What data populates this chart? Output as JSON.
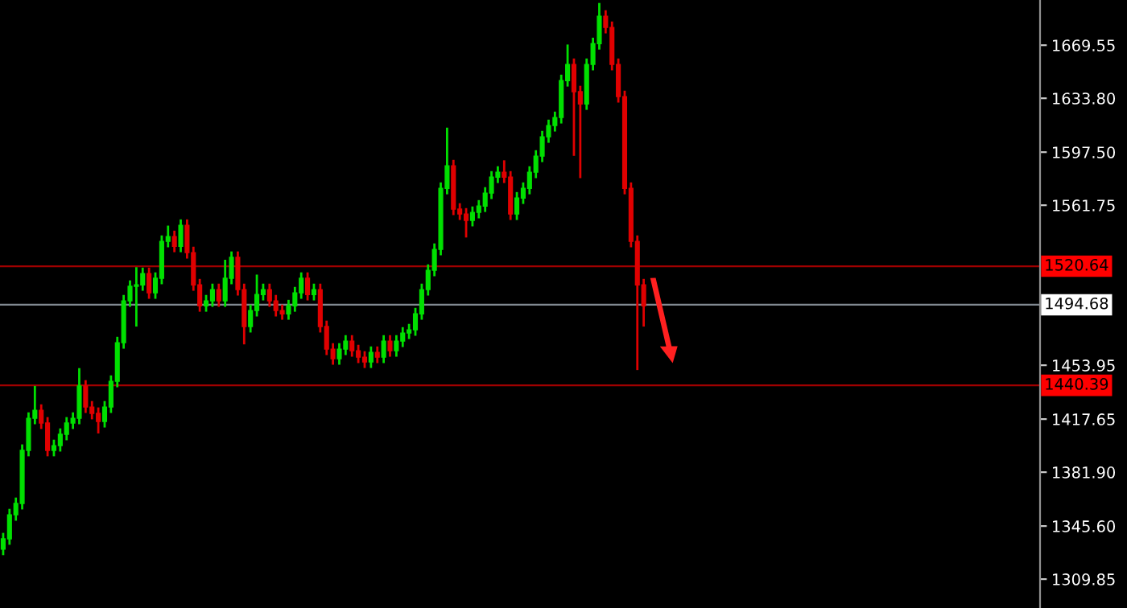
{
  "chart_data": {
    "type": "candlestick",
    "categories": [
      null,
      null,
      null,
      null,
      null,
      null,
      null,
      null,
      null,
      null,
      null,
      null,
      null,
      null,
      null,
      null,
      null,
      null,
      null,
      null,
      null,
      null,
      null,
      null,
      null,
      null,
      null,
      null,
      null,
      null,
      null,
      null,
      null,
      null,
      null,
      null,
      null,
      null,
      null,
      null,
      null,
      null,
      null,
      null,
      null,
      null,
      null,
      null,
      null,
      null,
      null,
      null,
      null,
      null,
      null,
      null,
      null,
      null,
      null,
      null,
      null,
      null,
      null,
      null,
      null,
      null,
      null,
      null,
      null,
      null,
      null,
      null,
      null,
      null,
      null,
      null,
      null,
      null,
      null,
      null,
      null,
      null,
      null,
      null,
      null,
      null,
      null,
      null,
      null,
      null,
      null,
      null,
      null,
      null,
      null,
      null,
      null,
      null,
      null,
      null,
      null,
      null,
      null,
      null,
      null,
      null,
      null,
      null,
      null,
      null,
      null,
      null,
      null,
      null,
      null,
      null,
      null,
      null,
      null,
      null,
      null,
      null,
      null,
      null,
      null,
      null,
      null,
      null,
      null,
      null,
      null,
      null,
      null,
      null,
      null,
      null,
      null,
      null,
      null,
      null,
      null,
      null,
      null,
      null,
      null,
      null,
      null,
      null,
      null,
      null,
      null,
      null,
      null,
      null,
      null,
      null,
      null,
      null,
      null,
      null,
      null,
      null,
      null,
      null
    ],
    "ohlc": [
      [
        1330.0,
        1341.0,
        1326.0,
        1337.0
      ],
      [
        1337.0,
        1357.2,
        1333.0,
        1353.2
      ],
      [
        1353.2,
        1364.8,
        1349.2,
        1360.8
      ],
      [
        1360.8,
        1400.6,
        1356.8,
        1396.6
      ],
      [
        1396.6,
        1422.2,
        1392.6,
        1418.2
      ],
      [
        1418.2,
        1440.0,
        1414.2,
        1423.6
      ],
      [
        1423.6,
        1427.6,
        1411.0,
        1415.0
      ],
      [
        1415.0,
        1419.0,
        1392.6,
        1396.6
      ],
      [
        1396.6,
        1403.8,
        1392.6,
        1399.8
      ],
      [
        1399.8,
        1411.4,
        1395.8,
        1407.4
      ],
      [
        1407.4,
        1419.0,
        1403.4,
        1415.0
      ],
      [
        1415.0,
        1422.2,
        1411.0,
        1418.2
      ],
      [
        1418.2,
        1452.0,
        1414.2,
        1439.9
      ],
      [
        1439.9,
        1443.9,
        1421.8,
        1425.8
      ],
      [
        1425.8,
        1429.8,
        1417.5,
        1421.5
      ],
      [
        1421.5,
        1425.5,
        1408.0,
        1416.0
      ],
      [
        1416.0,
        1429.8,
        1412.0,
        1425.8
      ],
      [
        1425.8,
        1447.1,
        1421.8,
        1443.1
      ],
      [
        1443.1,
        1473.1,
        1439.1,
        1469.1
      ],
      [
        1469.1,
        1501.3,
        1465.1,
        1497.3
      ],
      [
        1497.3,
        1511.1,
        1493.3,
        1507.1
      ],
      [
        1507.1,
        1520.0,
        1480.0,
        1508.1
      ],
      [
        1508.1,
        1519.7,
        1504.1,
        1515.7
      ],
      [
        1515.7,
        1519.7,
        1498.7,
        1502.7
      ],
      [
        1502.7,
        1516.5,
        1498.7,
        1512.5
      ],
      [
        1512.5,
        1541.4,
        1508.5,
        1537.4
      ],
      [
        1537.4,
        1548.0,
        1533.4,
        1540.6
      ],
      [
        1540.6,
        1544.6,
        1530.1,
        1534.1
      ],
      [
        1534.1,
        1552.2,
        1530.1,
        1548.2
      ],
      [
        1548.2,
        1552.2,
        1525.8,
        1529.8
      ],
      [
        1529.8,
        1533.8,
        1504.1,
        1508.1
      ],
      [
        1508.1,
        1512.1,
        1490.0,
        1494.0
      ],
      [
        1494.0,
        1501.3,
        1490.0,
        1497.3
      ],
      [
        1497.3,
        1508.9,
        1493.3,
        1504.9
      ],
      [
        1504.9,
        1508.9,
        1493.3,
        1497.3
      ],
      [
        1497.3,
        1525.0,
        1493.3,
        1512.5
      ],
      [
        1512.5,
        1530.6,
        1508.5,
        1526.6
      ],
      [
        1526.6,
        1530.6,
        1500.9,
        1504.9
      ],
      [
        1504.9,
        1508.9,
        1468.0,
        1480.0
      ],
      [
        1480.0,
        1494.8,
        1476.0,
        1490.8
      ],
      [
        1490.8,
        1515.0,
        1486.8,
        1501.6
      ],
      [
        1501.6,
        1508.9,
        1497.6,
        1504.9
      ],
      [
        1504.9,
        1508.9,
        1493.3,
        1497.3
      ],
      [
        1497.3,
        1501.3,
        1486.8,
        1490.8
      ],
      [
        1490.8,
        1494.8,
        1484.6,
        1488.6
      ],
      [
        1488.6,
        1498.0,
        1484.6,
        1494.0
      ],
      [
        1494.0,
        1506.7,
        1490.0,
        1502.7
      ],
      [
        1502.7,
        1516.5,
        1498.7,
        1512.5
      ],
      [
        1512.5,
        1516.5,
        1497.6,
        1501.6
      ],
      [
        1501.6,
        1508.9,
        1497.6,
        1504.9
      ],
      [
        1504.9,
        1508.9,
        1476.0,
        1480.0
      ],
      [
        1480.0,
        1484.0,
        1460.8,
        1464.8
      ],
      [
        1464.8,
        1468.8,
        1454.3,
        1458.3
      ],
      [
        1458.3,
        1468.8,
        1454.3,
        1464.8
      ],
      [
        1464.8,
        1474.2,
        1460.8,
        1470.2
      ],
      [
        1470.2,
        1474.2,
        1459.7,
        1463.7
      ],
      [
        1463.7,
        1467.7,
        1455.4,
        1459.4
      ],
      [
        1459.4,
        1463.4,
        1452.1,
        1456.1
      ],
      [
        1456.1,
        1466.6,
        1452.1,
        1462.6
      ],
      [
        1462.6,
        1466.6,
        1455.4,
        1459.4
      ],
      [
        1459.4,
        1474.2,
        1455.4,
        1470.2
      ],
      [
        1470.2,
        1474.2,
        1459.7,
        1463.7
      ],
      [
        1463.7,
        1474.2,
        1459.7,
        1470.2
      ],
      [
        1470.2,
        1479.6,
        1466.2,
        1475.6
      ],
      [
        1475.6,
        1481.8,
        1471.6,
        1477.8
      ],
      [
        1477.8,
        1492.6,
        1473.8,
        1488.6
      ],
      [
        1488.6,
        1508.9,
        1484.6,
        1504.9
      ],
      [
        1504.9,
        1521.9,
        1500.9,
        1517.9
      ],
      [
        1517.9,
        1536.0,
        1513.9,
        1532.0
      ],
      [
        1532.0,
        1577.1,
        1528.0,
        1573.1
      ],
      [
        1573.1,
        1614.0,
        1569.1,
        1588.3
      ],
      [
        1588.3,
        1592.3,
        1555.1,
        1559.1
      ],
      [
        1559.1,
        1563.1,
        1551.8,
        1555.8
      ],
      [
        1555.8,
        1559.8,
        1540.0,
        1551.5
      ],
      [
        1551.5,
        1560.9,
        1547.5,
        1556.9
      ],
      [
        1556.9,
        1565.2,
        1552.9,
        1561.2
      ],
      [
        1561.2,
        1573.9,
        1557.2,
        1569.9
      ],
      [
        1569.9,
        1584.7,
        1565.9,
        1580.7
      ],
      [
        1580.7,
        1588.0,
        1576.7,
        1584.0
      ],
      [
        1584.0,
        1592.0,
        1576.7,
        1580.7
      ],
      [
        1580.7,
        1584.7,
        1551.8,
        1555.8
      ],
      [
        1555.8,
        1570.6,
        1551.8,
        1566.6
      ],
      [
        1566.6,
        1577.1,
        1562.6,
        1573.1
      ],
      [
        1573.1,
        1588.0,
        1569.1,
        1584.0
      ],
      [
        1584.0,
        1598.8,
        1580.0,
        1594.8
      ],
      [
        1594.8,
        1611.8,
        1590.8,
        1607.8
      ],
      [
        1607.8,
        1619.4,
        1603.8,
        1615.4
      ],
      [
        1615.4,
        1624.8,
        1611.4,
        1620.8
      ],
      [
        1620.8,
        1649.7,
        1616.8,
        1645.7
      ],
      [
        1645.7,
        1670.0,
        1641.7,
        1656.6
      ],
      [
        1656.6,
        1660.6,
        1595.0,
        1638.2
      ],
      [
        1638.2,
        1642.2,
        1580.0,
        1630.0
      ],
      [
        1630.0,
        1660.6,
        1626.0,
        1656.6
      ],
      [
        1656.6,
        1674.6,
        1652.6,
        1670.6
      ],
      [
        1670.6,
        1698.0,
        1666.6,
        1689.1
      ],
      [
        1689.1,
        1693.1,
        1677.5,
        1681.5
      ],
      [
        1681.5,
        1685.5,
        1652.6,
        1656.6
      ],
      [
        1656.6,
        1660.6,
        1630.9,
        1634.9
      ],
      [
        1634.9,
        1638.9,
        1569.1,
        1573.1
      ],
      [
        1573.1,
        1577.1,
        1533.4,
        1537.4
      ],
      [
        1537.4,
        1541.4,
        1450.7,
        1508.1
      ],
      [
        1508.1,
        1512.1,
        1480.0,
        1494.0
      ],
      null,
      null,
      null,
      null,
      null,
      null,
      null,
      null,
      null,
      null,
      null,
      null,
      null,
      null,
      null,
      null,
      null,
      null,
      null,
      null,
      null,
      null,
      null,
      null,
      null,
      null,
      null,
      null,
      null,
      null,
      null,
      null,
      null,
      null,
      null,
      null,
      null,
      null,
      null,
      null,
      null,
      null,
      null,
      null,
      null,
      null,
      null,
      null,
      null,
      null,
      null,
      null,
      null,
      null,
      null,
      null,
      null,
      null,
      null,
      null,
      null,
      null
    ],
    "ylim": [
      1290.4,
      1700.0
    ],
    "yticks": [
      1309.85,
      {
        "value": 1345.6,
        "label": "1345.60"
      },
      {
        "value": 1381.9,
        "label": "1381.90"
      },
      1417.65,
      1453.95,
      1561.75,
      {
        "value": 1597.5,
        "label": "1597.50"
      },
      {
        "value": 1633.8,
        "label": "1633.80"
      },
      1669.55
    ],
    "ref_lines": [
      {
        "axis": "y",
        "value": 1520.64,
        "label": "1520.64",
        "color": "#a00000"
      },
      {
        "axis": "y",
        "value": 1494.68,
        "label": "1494.68",
        "color": "#808890"
      },
      {
        "axis": "y",
        "value": 1440.39,
        "label": "1440.39",
        "color": "#a00000"
      }
    ],
    "tick_labels": "y",
    "grid": false
  }
}
